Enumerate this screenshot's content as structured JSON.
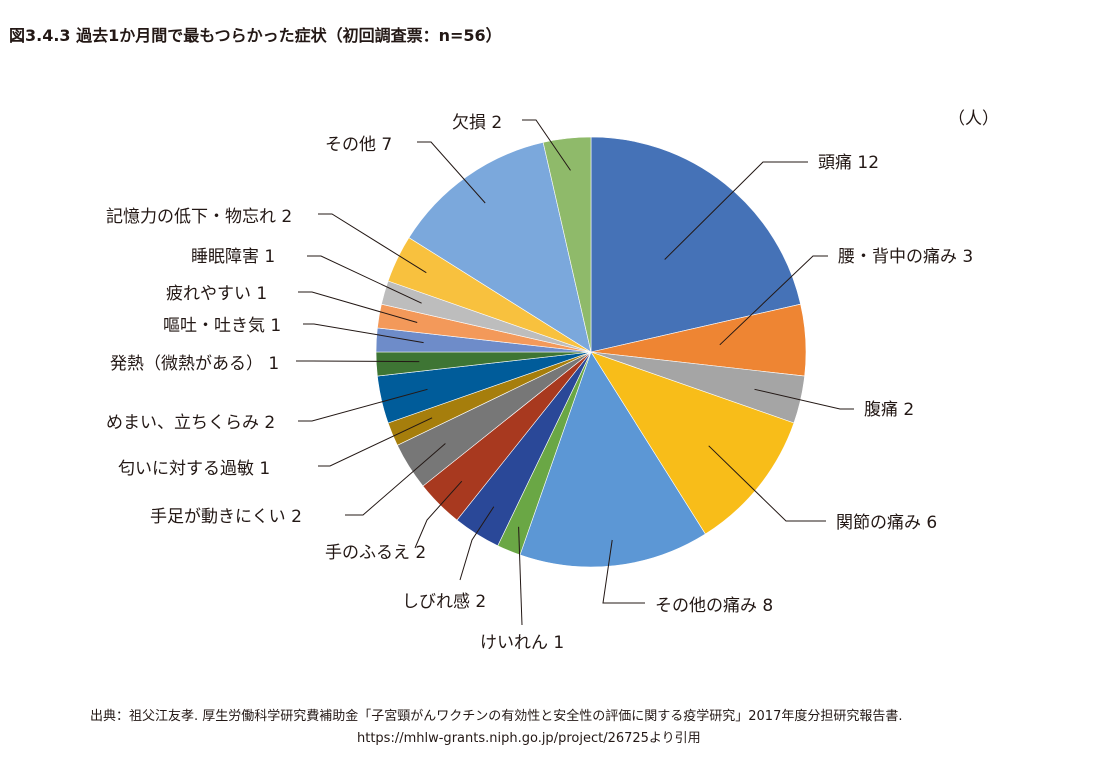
{
  "title": "図3.4.3  過去1か月間で最もつらかった症状（初回調査票：n=56）",
  "unit_label": "（人）",
  "source_line1": "出典：祖父江友孝. 厚生労働科学研究費補助金「子宮頸がんワクチンの有効性と安全性の評価に関する疫学研究」2017年度分担研究報告書.",
  "source_line2": "https://mhlw-grants.niph.go.jp/project/26725より引用",
  "chart_data": {
    "type": "pie",
    "title": "過去1か月間で最もつらかった症状（初回調査票：n=56）",
    "unit": "人",
    "total": 56,
    "start": "12 o'clock, clockwise",
    "slices": [
      {
        "label": "頭痛",
        "value": 12,
        "color": "#4572b7"
      },
      {
        "label": "腰・背中の痛み",
        "value": 3,
        "color": "#ee8533"
      },
      {
        "label": "腹痛",
        "value": 2,
        "color": "#a5a5a5"
      },
      {
        "label": "関節の痛み",
        "value": 6,
        "color": "#f8bd19"
      },
      {
        "label": "その他の痛み",
        "value": 8,
        "color": "#5c97d5"
      },
      {
        "label": "けいれん",
        "value": 1,
        "color": "#6aa745"
      },
      {
        "label": "しびれ感",
        "value": 2,
        "color": "#2a4898"
      },
      {
        "label": "手のふるえ",
        "value": 2,
        "color": "#a8391f"
      },
      {
        "label": "手足が動きにくい",
        "value": 2,
        "color": "#777777"
      },
      {
        "label": "匂いに対する過敏",
        "value": 1,
        "color": "#a67e0c"
      },
      {
        "label": "めまい、立ちくらみ",
        "value": 2,
        "color": "#005c9a"
      },
      {
        "label": "発熱（微熱がある）",
        "value": 1,
        "color": "#3e7534"
      },
      {
        "label": "嘔吐・吐き気",
        "value": 1,
        "color": "#6e8cc9"
      },
      {
        "label": "疲れやすい",
        "value": 1,
        "color": "#f3995a"
      },
      {
        "label": "睡眠障害",
        "value": 1,
        "color": "#bdbdbd"
      },
      {
        "label": "記憶力の低下・物忘れ",
        "value": 2,
        "color": "#f8c13e"
      },
      {
        "label": "その他",
        "value": 7,
        "color": "#7ba8dc"
      },
      {
        "label": "欠損",
        "value": 2,
        "color": "#8fba6a"
      }
    ]
  }
}
